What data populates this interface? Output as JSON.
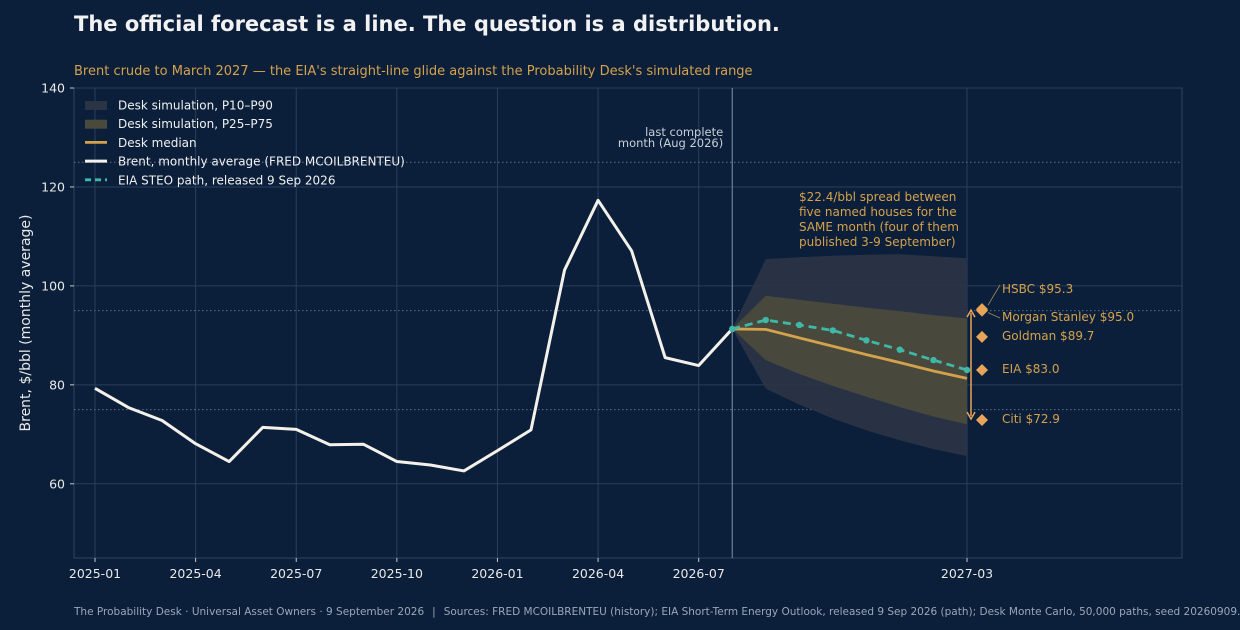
{
  "title": "The official forecast is a line. The question is a distribution.",
  "subtitle": "Brent crude to March 2027 — the EIA's straight-line glide against the Probability Desk's simulated range",
  "footer": {
    "left": "The Probability Desk · Universal Asset Owners · 9 September 2026",
    "separator": "|",
    "right": "Sources: FRED MCOILBRENTEU (history); EIA Short-Term Energy Outlook, released 9 Sep 2026 (path); Desk Monte Carlo, 50,000 paths, seed 20260909."
  },
  "colors": {
    "background": "#0b1f3a",
    "history": "#f4f1ea",
    "median": "#d4a24c",
    "eia": "#3fb8a8",
    "band_outer": "#2a3444",
    "band_inner": "#4a4a3c",
    "house": "#e8a458"
  },
  "chart_data": {
    "type": "line",
    "ylabel": "Brent, $/bbl (monthly average)",
    "ylim": [
      45,
      140
    ],
    "yticks": [
      60,
      80,
      100,
      120,
      140
    ],
    "xticks": [
      "2025-01",
      "2025-04",
      "2025-07",
      "2025-10",
      "2026-01",
      "2026-04",
      "2026-07",
      "2027-03"
    ],
    "grid": true,
    "legend_position": "top-left",
    "reference_lines": [
      75,
      95,
      125
    ],
    "last_complete": {
      "x": "2026-08",
      "label_line1": "last complete",
      "label_line2": "month (Aug 2026)"
    },
    "history": {
      "name": "Brent, monthly average (FRED MCOILBRENTEU)",
      "x": [
        "2025-01",
        "2025-02",
        "2025-03",
        "2025-04",
        "2025-05",
        "2025-06",
        "2025-07",
        "2025-08",
        "2025-09",
        "2025-10",
        "2025-11",
        "2025-12",
        "2026-01",
        "2026-02",
        "2026-03",
        "2026-04",
        "2026-05",
        "2026-06",
        "2026-07",
        "2026-08"
      ],
      "y": [
        79.3,
        75.4,
        72.8,
        68.1,
        64.5,
        71.4,
        71.0,
        67.9,
        68.0,
        64.5,
        63.8,
        62.6,
        66.7,
        70.9,
        103.2,
        117.3,
        107.1,
        85.5,
        83.9,
        91.3
      ]
    },
    "eia_path": {
      "name": "EIA STEO path, released 9 Sep 2026",
      "x": [
        "2026-08",
        "2026-09",
        "2026-10",
        "2026-11",
        "2026-12",
        "2027-01",
        "2027-02",
        "2027-03"
      ],
      "y": [
        91.3,
        93.1,
        92.1,
        91.0,
        89.0,
        87.1,
        85.0,
        83.0
      ]
    },
    "desk_median": {
      "name": "Desk median",
      "x": [
        "2026-08",
        "2026-09",
        "2026-10",
        "2026-11",
        "2026-12",
        "2027-01",
        "2027-02",
        "2027-03"
      ],
      "y": [
        91.3,
        91.2,
        89.5,
        87.8,
        86.1,
        84.5,
        82.8,
        81.3
      ]
    },
    "band_p25_p75": {
      "name": "Desk simulation, P25–P75",
      "x": [
        "2026-08",
        "2026-09",
        "2026-10",
        "2026-11",
        "2026-12",
        "2027-01",
        "2027-02",
        "2027-03"
      ],
      "low": [
        91.3,
        85.0,
        82.2,
        79.8,
        77.6,
        75.5,
        73.6,
        72.0
      ],
      "high": [
        91.3,
        98.0,
        97.2,
        96.4,
        95.6,
        94.9,
        94.1,
        93.4
      ]
    },
    "band_p10_p90": {
      "name": "Desk simulation, P10–P90",
      "x": [
        "2026-08",
        "2026-09",
        "2026-10",
        "2026-11",
        "2026-12",
        "2027-01",
        "2027-02",
        "2027-03"
      ],
      "low": [
        91.3,
        79.2,
        76.0,
        73.2,
        70.8,
        68.8,
        67.0,
        65.6
      ],
      "high": [
        91.3,
        105.4,
        105.8,
        106.1,
        106.3,
        106.4,
        106.0,
        105.6
      ]
    },
    "houses": [
      {
        "name": "HSBC",
        "value": 95.3,
        "label": "HSBC  $95.3"
      },
      {
        "name": "Morgan Stanley",
        "value": 95.0,
        "label": "Morgan Stanley  $95.0"
      },
      {
        "name": "Goldman",
        "value": 89.7,
        "label": "Goldman  $89.7"
      },
      {
        "name": "EIA",
        "value": 83.0,
        "label": "EIA  $83.0"
      },
      {
        "name": "Citi",
        "value": 72.9,
        "label": "Citi  $72.9"
      }
    ],
    "spread_annotation": [
      "$22.4/bbl spread between",
      "five named houses for the",
      "SAME month (four of them",
      "published 3-9 September)"
    ]
  }
}
